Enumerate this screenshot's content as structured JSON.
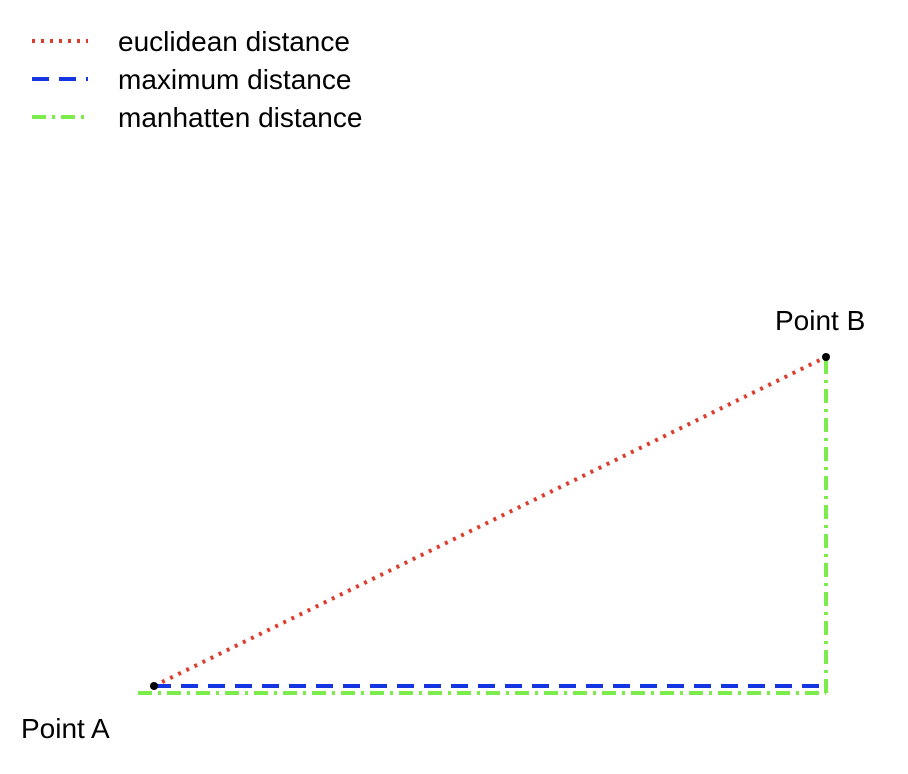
{
  "legend": {
    "items": [
      {
        "label": "euclidean distance",
        "color": "#dd3b2e",
        "style": "dotted"
      },
      {
        "label": "maximum distance",
        "color": "#1535e3",
        "style": "dashed"
      },
      {
        "label": "manhatten distance",
        "color": "#7bec4b",
        "style": "dashdot"
      }
    ]
  },
  "points": {
    "a": {
      "label": "Point A",
      "x": 0,
      "y": 0
    },
    "b": {
      "label": "Point B",
      "x": 2,
      "y": 1
    }
  },
  "colors": {
    "point_fill": "#000000",
    "background": "#ffffff"
  }
}
